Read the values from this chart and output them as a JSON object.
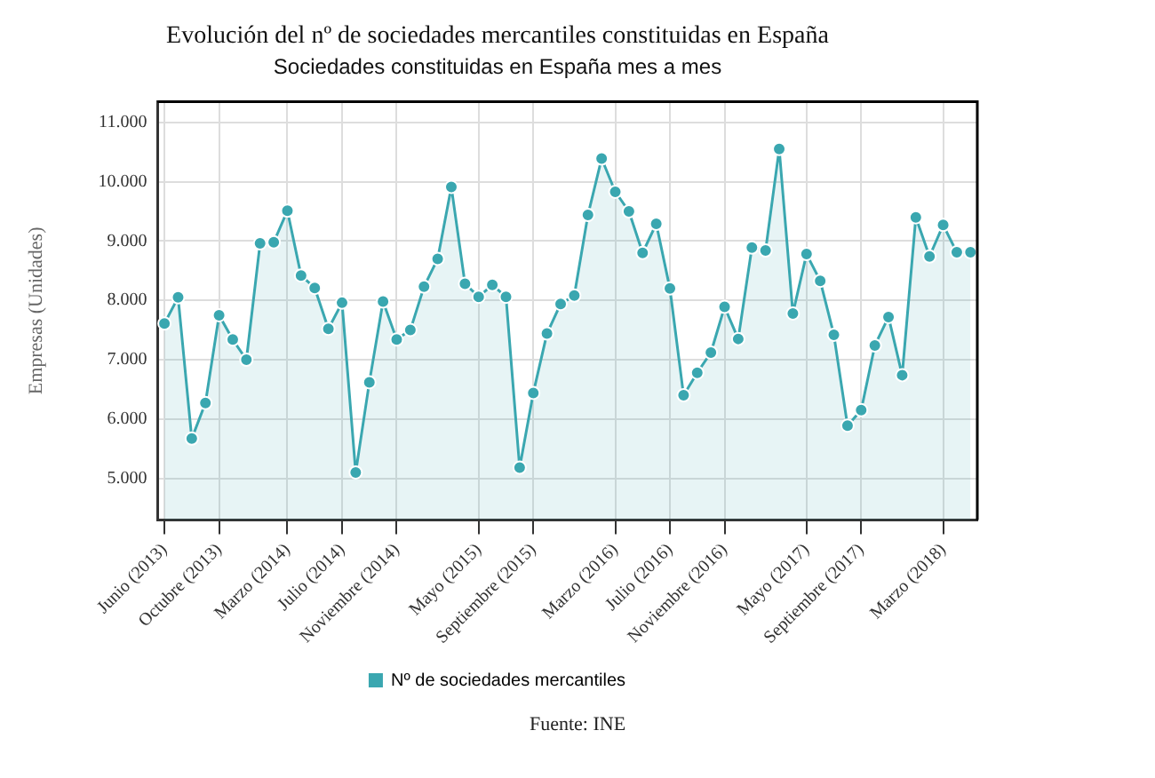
{
  "chart_data": {
    "type": "area",
    "title": "Evolución del nº de sociedades mercantiles constituidas en España",
    "subtitle": "Sociedades constituidas en España mes a mes",
    "ylabel": "Empresas (Unidades)",
    "categories": [
      "Junio (2013)",
      null,
      null,
      null,
      "Octubre (2013)",
      null,
      null,
      null,
      null,
      "Marzo (2014)",
      null,
      null,
      null,
      "Julio (2014)",
      null,
      null,
      null,
      "Noviembre (2014)",
      null,
      null,
      null,
      null,
      null,
      "Mayo (2015)",
      null,
      null,
      null,
      "Septiembre (2015)",
      null,
      null,
      null,
      null,
      null,
      "Marzo (2016)",
      null,
      null,
      null,
      "Julio (2016)",
      null,
      null,
      null,
      "Noviembre (2016)",
      null,
      null,
      null,
      null,
      null,
      "Mayo (2017)",
      null,
      null,
      null,
      "Septiembre (2017)",
      null,
      null,
      null,
      null,
      null,
      "Marzo (2018)",
      null,
      null
    ],
    "series": [
      {
        "name": "Nº de sociedades mercantiles",
        "color": "#3aa7b0",
        "values": [
          7610,
          8050,
          5670,
          6270,
          7750,
          7340,
          7000,
          8960,
          8980,
          9510,
          8420,
          8210,
          7520,
          7960,
          5100,
          6620,
          7980,
          7340,
          7500,
          8230,
          8700,
          9910,
          8280,
          8060,
          8260,
          8060,
          5180,
          6440,
          7440,
          7940,
          8080,
          9440,
          10390,
          9830,
          9500,
          8800,
          9290,
          8200,
          6400,
          6780,
          7120,
          7890,
          7350,
          8890,
          8840,
          10550,
          7780,
          8780,
          8330,
          7420,
          5890,
          6150,
          7240,
          7720,
          6740,
          9400,
          8740,
          9270,
          8810,
          8810
        ]
      }
    ],
    "ylim": [
      4300,
      11350
    ],
    "yticks": [
      {
        "value": 5000,
        "label": "5.000"
      },
      {
        "value": 6000,
        "label": "6.000"
      },
      {
        "value": 7000,
        "label": "7.000"
      },
      {
        "value": 8000,
        "label": "8.000"
      },
      {
        "value": 9000,
        "label": "9.000"
      },
      {
        "value": 10000,
        "label": "10.000"
      },
      {
        "value": 11000,
        "label": "11.000"
      }
    ],
    "grid": true,
    "legend": "bottom",
    "marker": "circle",
    "line_style": "solid",
    "annotations": [
      "Fuente: INE"
    ]
  }
}
